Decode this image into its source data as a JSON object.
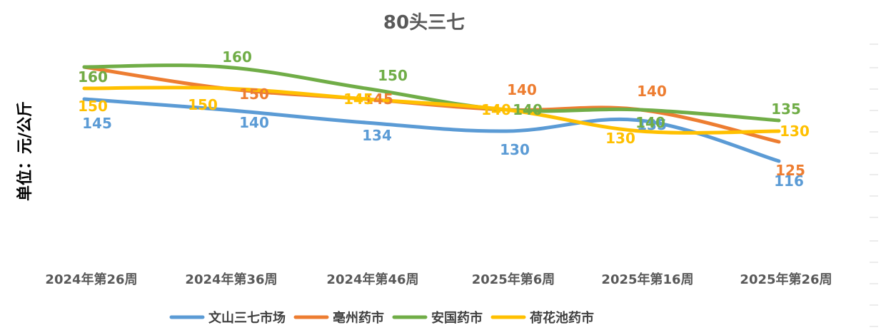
{
  "chart_data": {
    "type": "line",
    "title": "80头三七",
    "ylabel": "单位：元/公斤",
    "xlabel": "",
    "categories": [
      "2024年第26周",
      "2024年第36周",
      "2024年第46周",
      "2025年第6周",
      "2025年第16周",
      "2025年第26周"
    ],
    "ylim": [
      90,
      180
    ],
    "grid": false,
    "legend": "bottom",
    "smooth": true,
    "series": [
      {
        "name": "文山三七市场",
        "color": "#5b9bd5",
        "values": [
          145,
          140,
          134,
          130,
          135,
          116
        ]
      },
      {
        "name": "亳州药市",
        "color": "#ed7d31",
        "values": [
          160,
          150,
          145,
          140,
          140,
          125
        ]
      },
      {
        "name": "安国药市",
        "color": "#70ad47",
        "values": [
          160,
          160,
          150,
          140,
          140,
          135
        ]
      },
      {
        "name": "荷花池药市",
        "color": "#ffc000",
        "values": [
          150,
          150,
          145,
          140,
          130,
          130
        ]
      }
    ]
  }
}
